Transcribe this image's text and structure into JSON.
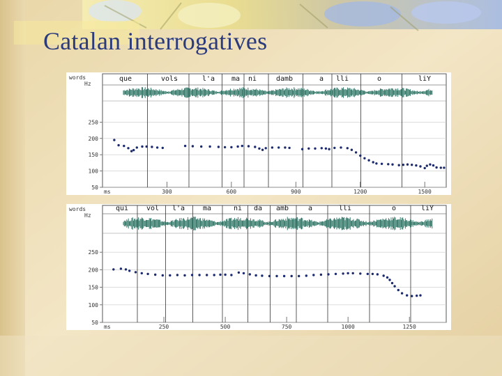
{
  "slide": {
    "title": "Catalan interrogatives"
  },
  "chart_data": [
    {
      "type": "line",
      "title": "",
      "words_label": "words",
      "hz_label": "Hz",
      "ms_label": "ms",
      "words": [
        "que",
        "vols",
        "l'a",
        "ma",
        "ni",
        "damb",
        "a",
        "lli",
        "o",
        "liY"
      ],
      "y_ticks": [
        50,
        100,
        150,
        200,
        250
      ],
      "x_ticks": [
        300,
        600,
        900,
        1200,
        1500
      ],
      "xlim": [
        0,
        1600
      ],
      "ylim": [
        50,
        300
      ],
      "series": [
        {
          "points": [
            [
              55,
              195
            ],
            [
              75,
              179
            ],
            [
              100,
              177
            ],
            [
              120,
              170
            ],
            [
              135,
              161
            ],
            [
              145,
              164
            ],
            [
              160,
              172
            ],
            [
              185,
              175
            ],
            [
              205,
              175
            ],
            [
              230,
              174
            ],
            [
              255,
              172
            ],
            [
              280,
              171
            ],
            [
              385,
              177
            ],
            [
              420,
              176
            ],
            [
              460,
              175
            ],
            [
              500,
              175
            ],
            [
              540,
              174
            ],
            [
              570,
              173
            ],
            [
              600,
              173
            ],
            [
              630,
              175
            ],
            [
              650,
              177
            ],
            [
              680,
              176
            ],
            [
              710,
              174
            ],
            [
              730,
              169
            ],
            [
              745,
              165
            ],
            [
              760,
              170
            ],
            [
              790,
              172
            ],
            [
              820,
              172
            ],
            [
              850,
              172
            ],
            [
              870,
              171
            ],
            [
              930,
              167
            ],
            [
              960,
              169
            ],
            [
              990,
              169
            ],
            [
              1020,
              170
            ],
            [
              1040,
              169
            ],
            [
              1055,
              167
            ],
            [
              1080,
              171
            ],
            [
              1110,
              172
            ],
            [
              1140,
              170
            ],
            [
              1160,
              165
            ],
            [
              1180,
              157
            ],
            [
              1200,
              147
            ],
            [
              1220,
              139
            ],
            [
              1240,
              133
            ],
            [
              1260,
              127
            ],
            [
              1275,
              123
            ],
            [
              1300,
              122
            ],
            [
              1330,
              121
            ],
            [
              1350,
              120
            ],
            [
              1380,
              118
            ],
            [
              1400,
              119
            ],
            [
              1420,
              120
            ],
            [
              1440,
              119
            ],
            [
              1460,
              117
            ],
            [
              1480,
              114
            ],
            [
              1500,
              109
            ],
            [
              1510,
              116
            ],
            [
              1525,
              120
            ],
            [
              1540,
              117
            ],
            [
              1555,
              111
            ],
            [
              1575,
              110
            ],
            [
              1590,
              110
            ]
          ]
        }
      ]
    },
    {
      "type": "line",
      "title": "",
      "words_label": "words",
      "hz_label": "Hz",
      "ms_label": "ms",
      "words": [
        "qui",
        "vol",
        "l'a",
        "ma",
        "ni",
        "da",
        "amb",
        "a",
        "lli",
        "o",
        "liY"
      ],
      "y_ticks": [
        50,
        100,
        150,
        200,
        250
      ],
      "x_ticks": [
        250,
        500,
        750,
        1000,
        1250
      ],
      "xlim": [
        0,
        1400
      ],
      "ylim": [
        50,
        300
      ],
      "series": [
        {
          "points": [
            [
              45,
              201
            ],
            [
              75,
              203
            ],
            [
              95,
              201
            ],
            [
              110,
              197
            ],
            [
              135,
              193
            ],
            [
              160,
              190
            ],
            [
              185,
              188
            ],
            [
              215,
              186
            ],
            [
              245,
              184
            ],
            [
              275,
              184
            ],
            [
              305,
              185
            ],
            [
              335,
              184
            ],
            [
              365,
              185
            ],
            [
              395,
              185
            ],
            [
              425,
              185
            ],
            [
              455,
              185
            ],
            [
              480,
              186
            ],
            [
              500,
              186
            ],
            [
              525,
              185
            ],
            [
              555,
              192
            ],
            [
              575,
              190
            ],
            [
              600,
              187
            ],
            [
              625,
              184
            ],
            [
              650,
              183
            ],
            [
              680,
              182
            ],
            [
              710,
              182
            ],
            [
              740,
              182
            ],
            [
              770,
              182
            ],
            [
              800,
              182
            ],
            [
              830,
              183
            ],
            [
              860,
              185
            ],
            [
              890,
              186
            ],
            [
              920,
              187
            ],
            [
              950,
              188
            ],
            [
              980,
              189
            ],
            [
              1000,
              190
            ],
            [
              1020,
              190
            ],
            [
              1050,
              189
            ],
            [
              1080,
              188
            ],
            [
              1100,
              188
            ],
            [
              1120,
              187
            ],
            [
              1145,
              183
            ],
            [
              1160,
              178
            ],
            [
              1170,
              171
            ],
            [
              1180,
              162
            ],
            [
              1190,
              153
            ],
            [
              1205,
              142
            ],
            [
              1220,
              133
            ],
            [
              1240,
              127
            ],
            [
              1260,
              125
            ],
            [
              1280,
              126
            ],
            [
              1295,
              127
            ]
          ]
        }
      ]
    }
  ]
}
